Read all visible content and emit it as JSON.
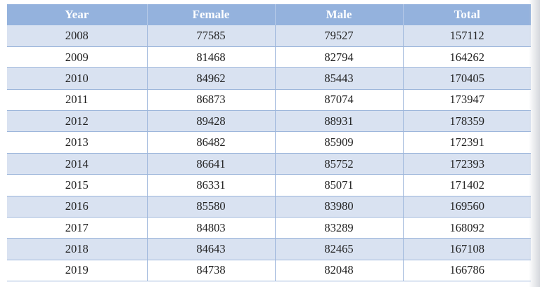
{
  "table": {
    "columns": [
      "Year",
      "Female",
      "Male",
      "Total"
    ],
    "rows": [
      [
        "2008",
        "77585",
        "79527",
        "157112"
      ],
      [
        "2009",
        "81468",
        "82794",
        "164262"
      ],
      [
        "2010",
        "84962",
        "85443",
        "170405"
      ],
      [
        "2011",
        "86873",
        "87074",
        "173947"
      ],
      [
        "2012",
        "89428",
        "88931",
        "178359"
      ],
      [
        "2013",
        "86482",
        "85909",
        "172391"
      ],
      [
        "2014",
        "86641",
        "85752",
        "172393"
      ],
      [
        "2015",
        "86331",
        "85071",
        "171402"
      ],
      [
        "2016",
        "85580",
        "83980",
        "169560"
      ],
      [
        "2017",
        "84803",
        "83289",
        "168092"
      ],
      [
        "2018",
        "84643",
        "82465",
        "167108"
      ],
      [
        "2019",
        "84738",
        "82048",
        "166786"
      ]
    ]
  },
  "colors": {
    "header_bg": "#94b2dd",
    "header_text": "#ffffff",
    "band_bg": "#d9e2f1",
    "grid_line": "#9db6db"
  }
}
